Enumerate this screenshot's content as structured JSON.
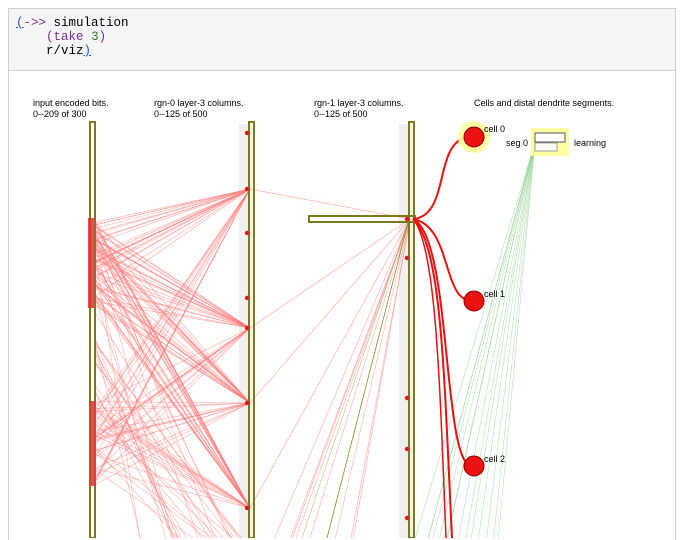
{
  "code": {
    "open_paren": "(",
    "macro": "->>",
    "line1_arg": "simulation",
    "line2_open": "(",
    "line2_fn": "take",
    "line2_num": "3",
    "line2_close": ")",
    "line3": "r/viz",
    "close_paren": ")"
  },
  "viz": {
    "col_input": {
      "title": "input encoded bits.",
      "subtitle": "0--209 of 300"
    },
    "col_rgn0": {
      "title": "rgn-0 layer-3 columns.",
      "subtitle": "0--125 of 500"
    },
    "col_rgn1": {
      "title": "rgn-1 layer-3 columns.",
      "subtitle": "0--125 of 500"
    },
    "col_cells": {
      "title": "Cells and distal dendrite segments."
    },
    "cells": [
      {
        "label": "cell 0"
      },
      {
        "label": "cell 1"
      },
      {
        "label": "cell 2"
      }
    ],
    "segment": {
      "label": "seg 0",
      "status": "learning"
    },
    "colors": {
      "active": "#ee1111",
      "link": "#ff7777",
      "green": "#88cc88",
      "olive": "#8a8a2a",
      "highlight": "#ffff99"
    }
  }
}
